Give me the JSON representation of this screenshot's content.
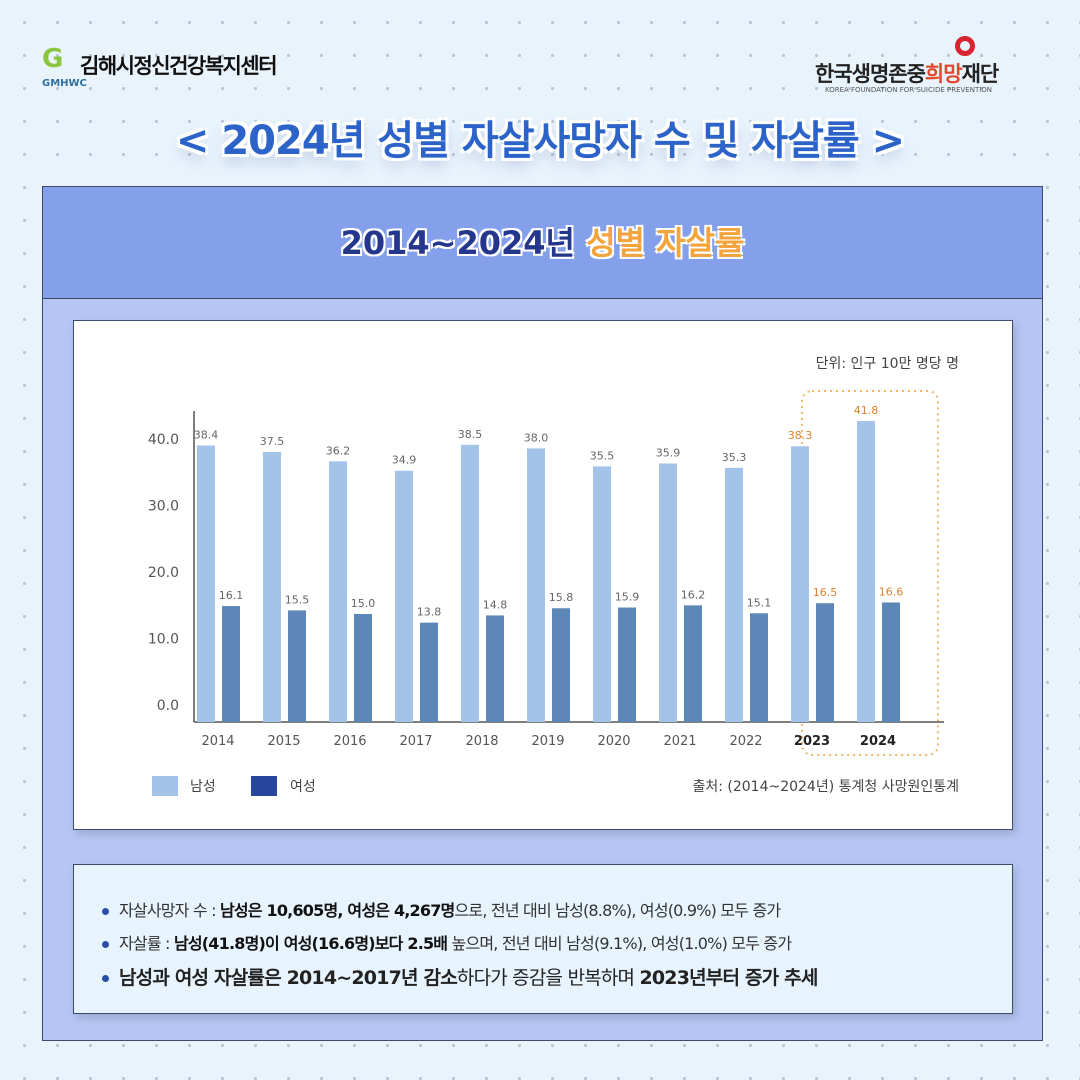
{
  "header": {
    "left_logo": {
      "mark": "G",
      "name": "김해시정신건강복지센터",
      "sub": "GMHWC"
    },
    "right_logo": {
      "name_a": "한국생명존중",
      "name_hl": "희망",
      "name_b": "재단",
      "sub": "KOREA FOUNDATION FOR SUICIDE PREVENTION"
    },
    "title": "< 2024년 성별 자살사망자 수 및 자살률 >"
  },
  "panel": {
    "title_a": "2014~2024년 ",
    "title_hl": "성별 자살률"
  },
  "colors": {
    "male": "#a4c3e8",
    "female": "#5c87b6",
    "legend_female": "#26479d",
    "highlight": "#d9822b"
  },
  "chart_data": {
    "type": "bar",
    "unit": "단위: 인구 10만 명당 명",
    "categories": [
      "2014",
      "2015",
      "2016",
      "2017",
      "2018",
      "2019",
      "2020",
      "2021",
      "2022",
      "2023",
      "2024"
    ],
    "series": [
      {
        "name": "남성",
        "values": [
          38.4,
          37.5,
          36.2,
          34.9,
          38.5,
          38.0,
          35.5,
          35.9,
          35.3,
          38.3,
          41.8
        ]
      },
      {
        "name": "여성",
        "values": [
          16.1,
          15.5,
          15.0,
          13.8,
          14.8,
          15.8,
          15.9,
          16.2,
          15.1,
          16.5,
          16.6
        ]
      }
    ],
    "yticks": [
      "0.0",
      "10.0",
      "20.0",
      "30.0",
      "40.0"
    ],
    "ylim": [
      0,
      40
    ],
    "highlighted": [
      "2023",
      "2024"
    ],
    "legend_position": "bottom-left",
    "source": "출처: (2014~2024년) 통계청 사망원인통계"
  },
  "info": {
    "r1": {
      "a": "자살사망자 수 : ",
      "b": "남성은 10,605명, 여성은 4,267명",
      "c": "으로, 전년 대비 남성(8.8%), 여성(0.9%) 모두 증가"
    },
    "r2": {
      "a": "자살률 : ",
      "b": "남성(41.8명)이 여성(16.6명)보다 2.5배",
      "c": " 높으며, 전년 대비 남성(9.1%), 여성(1.0%) 모두 증가"
    },
    "r3": {
      "a": "남성과 여성 자살률은 2014~2017년 감소",
      "b": "하다가 증감을 반복하며 ",
      "c": "2023년부터 증가 추세"
    }
  }
}
